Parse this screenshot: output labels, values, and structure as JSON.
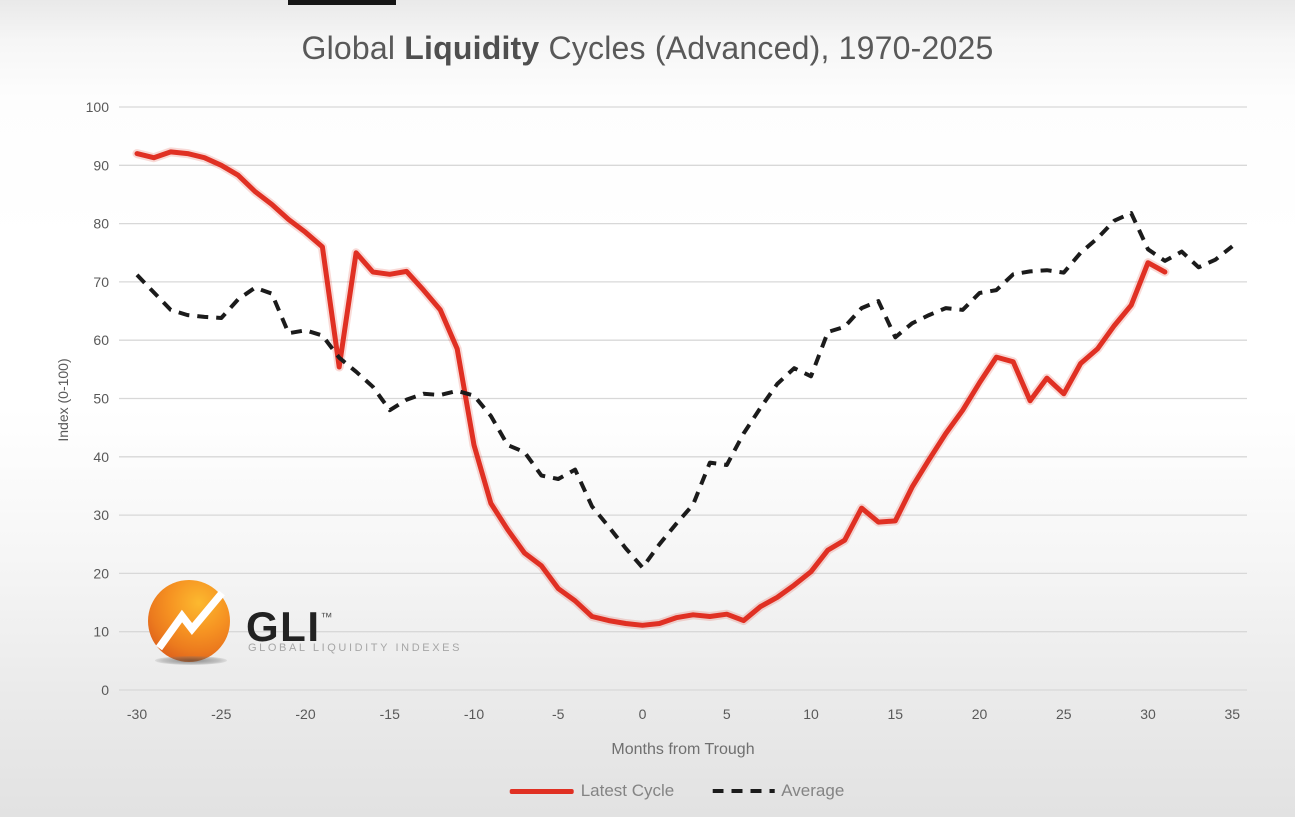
{
  "title": {
    "prefix": "Global ",
    "bold_word": "Liquidity",
    "suffix": " Cycles (Advanced), 1970-2025"
  },
  "logo": {
    "name": "GLI",
    "trademark": "™",
    "tagline": "GLOBAL LIQUIDITY INDEXES",
    "ball_color": "#f28021",
    "zigzag_color": "#ffffff"
  },
  "colors": {
    "latest_cycle": "#e03023",
    "average": "#1b1b1b",
    "gridline": "#d8d8d8",
    "tick_text": "#595959"
  },
  "chart_data": {
    "type": "line",
    "title": "Global Liquidity Cycles (Advanced), 1970-2025",
    "xlabel": "Months from Trough",
    "ylabel": "Index (0-100)",
    "xlim": [
      -30,
      35
    ],
    "ylim": [
      0,
      100
    ],
    "x_ticks": [
      -30,
      -25,
      -20,
      -15,
      -10,
      -5,
      0,
      5,
      10,
      15,
      20,
      25,
      30,
      35
    ],
    "y_ticks": [
      0,
      10,
      20,
      30,
      40,
      50,
      60,
      70,
      80,
      90,
      100
    ],
    "grid": "horizontal",
    "legend_position": "bottom",
    "series": [
      {
        "name": "Latest Cycle",
        "color": "#e03023",
        "line_style": "solid",
        "x": [
          -30,
          -29,
          -28,
          -27,
          -26,
          -25,
          -24,
          -23,
          -22,
          -21,
          -20,
          -19,
          -18,
          -17,
          -16,
          -15,
          -14,
          -13,
          -12,
          -11,
          -10,
          -9,
          -8,
          -7,
          -6,
          -5,
          -4,
          -3,
          -2,
          -1,
          0,
          1,
          2,
          3,
          4,
          5,
          6,
          7,
          8,
          9,
          10,
          11,
          12,
          13,
          14,
          15,
          16,
          17,
          18,
          19,
          20,
          21,
          22,
          23,
          24,
          25,
          26,
          27,
          28,
          29,
          30,
          31
        ],
        "y": [
          92,
          91.3,
          92.3,
          92,
          91.3,
          90,
          88.3,
          85.5,
          83.3,
          80.7,
          78.5,
          76,
          55.4,
          75,
          71.7,
          71.3,
          71.8,
          68.6,
          65.2,
          58.5,
          42,
          32,
          27.5,
          23.5,
          21.3,
          17.4,
          15.3,
          12.6,
          11.9,
          11.4,
          11.1,
          11.4,
          12.4,
          12.9,
          12.6,
          13,
          11.9,
          14.3,
          15.9,
          18,
          20.3,
          24,
          25.7,
          31.2,
          28.8,
          29,
          34.8,
          39.5,
          44,
          48,
          52.7,
          57.1,
          56.3,
          49.6,
          53.5,
          50.8,
          56,
          58.5,
          62.5,
          66,
          73.3,
          71.7
        ]
      },
      {
        "name": "Average",
        "color": "#1b1b1b",
        "line_style": "dashed",
        "x": [
          -30,
          -29,
          -28,
          -27,
          -26,
          -25,
          -24,
          -23,
          -22,
          -21,
          -20,
          -19,
          -18,
          -17,
          -16,
          -15,
          -14,
          -13,
          -12,
          -11,
          -10,
          -9,
          -8,
          -7,
          -6,
          -5,
          -4,
          -3,
          -2,
          -1,
          0,
          1,
          2,
          3,
          4,
          5,
          6,
          7,
          8,
          9,
          10,
          11,
          12,
          13,
          14,
          15,
          16,
          17,
          18,
          19,
          20,
          21,
          22,
          23,
          24,
          25,
          26,
          27,
          28,
          29,
          30,
          31,
          32,
          33,
          34,
          35
        ],
        "y": [
          71.2,
          68.2,
          65.2,
          64.3,
          64,
          63.8,
          67,
          69,
          68,
          61.2,
          61.7,
          60.8,
          57,
          54.6,
          52,
          48,
          49.8,
          50.8,
          50.6,
          51.3,
          50.5,
          47,
          42,
          40.8,
          36.8,
          36.2,
          37.8,
          31.5,
          28,
          24.3,
          21,
          25,
          28.5,
          31.8,
          39,
          38.6,
          44,
          48.4,
          52.5,
          55.2,
          53.8,
          61.4,
          62.3,
          65.5,
          66.7,
          60.5,
          62.9,
          64.3,
          65.5,
          65.2,
          68.1,
          68.6,
          71.3,
          71.8,
          72,
          71.6,
          75,
          77.5,
          80.5,
          81.8,
          75.6,
          73.6,
          75.2,
          72.5,
          73.8,
          76.1
        ]
      }
    ]
  }
}
